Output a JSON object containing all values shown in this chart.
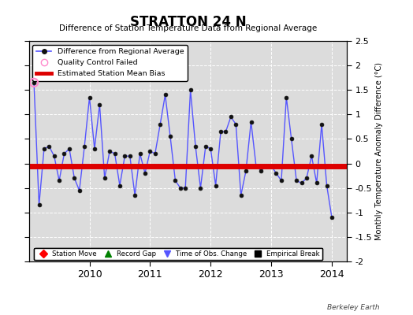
{
  "title": "STRATTON 24 N",
  "subtitle": "Difference of Station Temperature Data from Regional Average",
  "ylabel": "Monthly Temperature Anomaly Difference (°C)",
  "bias_value": -0.05,
  "ylim": [
    -2.0,
    2.5
  ],
  "yticks": [
    -2.0,
    -1.5,
    -1.0,
    -0.5,
    0.0,
    0.5,
    1.0,
    1.5,
    2.0,
    2.5
  ],
  "ytick_labels": [
    "-2",
    "-1.5",
    "-1",
    "-0.5",
    "0",
    "0.5",
    "1",
    "1.5",
    "2",
    "2.5"
  ],
  "xlim": [
    2009.0,
    2014.25
  ],
  "xticks": [
    2010,
    2011,
    2012,
    2013,
    2014
  ],
  "background_color": "#dcdcdc",
  "watermark": "Berkeley Earth",
  "qc_failed_x": [
    2009.083
  ],
  "qc_failed_y": [
    1.65
  ],
  "time_series_x": [
    2009.083,
    2009.167,
    2009.25,
    2009.333,
    2009.417,
    2009.5,
    2009.583,
    2009.667,
    2009.75,
    2009.833,
    2009.917,
    2010.0,
    2010.083,
    2010.167,
    2010.25,
    2010.333,
    2010.417,
    2010.5,
    2010.583,
    2010.667,
    2010.75,
    2010.833,
    2010.917,
    2011.0,
    2011.083,
    2011.167,
    2011.25,
    2011.333,
    2011.417,
    2011.5,
    2011.583,
    2011.667,
    2011.75,
    2011.833,
    2011.917,
    2012.0,
    2012.083,
    2012.167,
    2012.25,
    2012.333,
    2012.417,
    2012.5,
    2012.583,
    2012.667,
    2012.75,
    2012.833,
    2012.917,
    2013.0,
    2013.083,
    2013.167,
    2013.25,
    2013.333,
    2013.417,
    2013.5,
    2013.583,
    2013.667,
    2013.75,
    2013.833,
    2013.917,
    2014.0
  ],
  "time_series_y": [
    1.65,
    -0.85,
    0.3,
    0.35,
    0.15,
    -0.35,
    0.2,
    0.3,
    -0.3,
    -0.55,
    0.35,
    1.35,
    0.3,
    1.2,
    -0.3,
    0.25,
    0.2,
    -0.45,
    0.15,
    0.15,
    -0.65,
    0.2,
    -0.2,
    0.25,
    0.2,
    0.8,
    1.4,
    0.55,
    -0.35,
    -0.5,
    -0.5,
    1.5,
    0.35,
    -0.5,
    0.35,
    0.3,
    -0.45,
    0.65,
    0.65,
    0.95,
    0.8,
    -0.65,
    -0.15,
    0.85,
    -0.05,
    -0.15,
    -0.05,
    -0.05,
    -0.2,
    -0.35,
    1.35,
    0.5,
    -0.35,
    -0.4,
    -0.3,
    0.15,
    -0.4,
    0.8,
    -0.45,
    -1.1
  ],
  "line_color": "#5555ff",
  "marker_color": "#111111",
  "bias_color": "#dd0000",
  "bias_linewidth": 5.0,
  "qc_color": "#ff88cc"
}
